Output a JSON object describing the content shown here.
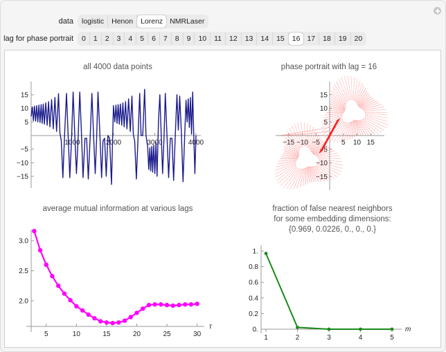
{
  "controls": {
    "data": {
      "label": "data",
      "options": [
        "logistic",
        "Henon",
        "Lorenz",
        "NMRLaser"
      ],
      "selected": "Lorenz"
    },
    "lag": {
      "label": "lag for phase portrait",
      "options": [
        "0",
        "1",
        "2",
        "3",
        "4",
        "5",
        "6",
        "7",
        "8",
        "9",
        "10",
        "11",
        "12",
        "13",
        "14",
        "15",
        "16",
        "17",
        "18",
        "19",
        "20"
      ],
      "selected": "16"
    }
  },
  "panels": {
    "timeseries_title": "all 4000 data points",
    "phase_title": "phase portrait with lag = 16",
    "ami_title": "average mutual information at various lags",
    "fnn_title_line1": "fraction of false nearest neighbors",
    "fnn_title_line2": "for some embedding dimensions:",
    "fnn_title_line3": "{0.969, 0.0226, 0., 0., 0.}"
  },
  "colors": {
    "timeseries": "#1a1a8c",
    "phase": "#ff2020",
    "ami": "#ff00ff",
    "fnn": "#1a8a1a"
  },
  "chart_data": [
    {
      "type": "line",
      "title": "all 4000 data points",
      "xlabel": "",
      "ylabel": "",
      "xlim": [
        0,
        4000
      ],
      "ylim": [
        -19,
        19
      ],
      "xticks": [
        1000,
        2000,
        3000,
        4000
      ],
      "yticks": [
        -15,
        -10,
        -5,
        5,
        10,
        15
      ],
      "description": "Lorenz x-component time series oscillating between about -18 and 17, with slow growth-and-switch spirals",
      "peaks_approx": [
        {
          "x": 20,
          "y": 11
        },
        {
          "x": 60,
          "y": 11
        },
        {
          "x": 100,
          "y": 11
        },
        {
          "x": 140,
          "y": 11
        },
        {
          "x": 180,
          "y": 11
        },
        {
          "x": 220,
          "y": 11.5
        },
        {
          "x": 260,
          "y": 12
        },
        {
          "x": 300,
          "y": 12.5
        },
        {
          "x": 350,
          "y": 13
        },
        {
          "x": 400,
          "y": 13.5
        },
        {
          "x": 460,
          "y": 14
        },
        {
          "x": 520,
          "y": 15
        },
        {
          "x": 600,
          "y": 15.5
        },
        {
          "x": 680,
          "y": -15.5
        },
        {
          "x": 760,
          "y": 15.5
        },
        {
          "x": 840,
          "y": -15.5
        },
        {
          "x": 920,
          "y": 16
        },
        {
          "x": 1000,
          "y": -14
        },
        {
          "x": 1100,
          "y": -15.5
        },
        {
          "x": 1180,
          "y": 16
        },
        {
          "x": 1280,
          "y": -16
        },
        {
          "x": 1380,
          "y": 15.5
        },
        {
          "x": 1460,
          "y": -14
        },
        {
          "x": 1560,
          "y": 16
        },
        {
          "x": 1640,
          "y": -15.5
        },
        {
          "x": 1720,
          "y": -15
        },
        {
          "x": 1860,
          "y": -18
        },
        {
          "x": 2600,
          "y": 17
        },
        {
          "x": 2490,
          "y": -16
        },
        {
          "x": 3290,
          "y": 15
        },
        {
          "x": 3930,
          "y": 16
        }
      ]
    },
    {
      "type": "scatter",
      "title": "phase portrait with lag = 16",
      "xlim": [
        -19,
        19
      ],
      "ylim": [
        -19,
        19
      ],
      "xticks": [
        -15,
        -10,
        -5,
        5,
        10,
        15
      ],
      "yticks": [
        -15,
        -10,
        -5,
        5,
        10,
        15
      ],
      "description": "Lorenz attractor delay embedding x(t) vs x(t+16); two triangular lobes centered near (8,8) and (-8,-8)"
    },
    {
      "type": "line",
      "title": "average mutual information at various lags",
      "xlabel": "τ",
      "ylabel": "",
      "x": [
        3,
        4,
        5,
        6,
        7,
        8,
        9,
        10,
        11,
        12,
        13,
        14,
        15,
        16,
        17,
        18,
        19,
        20,
        21,
        22,
        23,
        24,
        25,
        26,
        27,
        28,
        29,
        30
      ],
      "values": [
        3.16,
        2.84,
        2.6,
        2.41,
        2.25,
        2.12,
        2.01,
        1.91,
        1.84,
        1.77,
        1.71,
        1.66,
        1.64,
        1.63,
        1.64,
        1.67,
        1.73,
        1.8,
        1.87,
        1.93,
        1.94,
        1.94,
        1.93,
        1.92,
        1.93,
        1.94,
        1.94,
        1.95
      ],
      "xticks": [
        5,
        10,
        15,
        20,
        25,
        30
      ],
      "yticks": [
        2.0,
        2.5,
        3.0
      ],
      "xlim": [
        2.5,
        30.5
      ],
      "ylim": [
        1.57,
        3.25
      ]
    },
    {
      "type": "line",
      "title": "fraction of false nearest neighbors for some embedding dimensions: {0.969, 0.0226, 0., 0., 0.}",
      "xlabel": "m",
      "ylabel": "",
      "x": [
        1,
        2,
        3,
        4,
        5
      ],
      "values": [
        0.969,
        0.0226,
        0,
        0,
        0
      ],
      "xticks": [
        1,
        2,
        3,
        4,
        5
      ],
      "yticks": [
        "0.",
        "0.2",
        "0.4",
        "0.6",
        "0.8",
        "1."
      ],
      "xlim": [
        0.8,
        5.7
      ],
      "ylim": [
        0,
        1.05
      ]
    }
  ]
}
